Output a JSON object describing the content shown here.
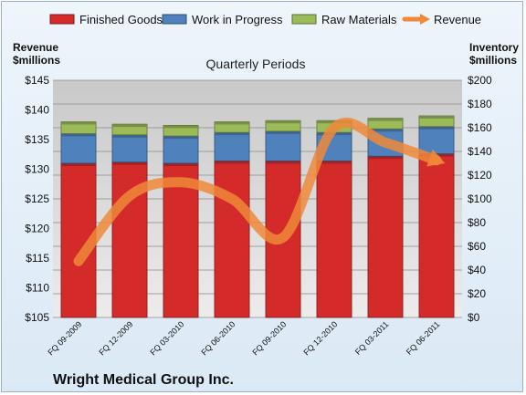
{
  "chart_data": {
    "type": "bar",
    "title": "Quarterly Periods",
    "company": "Wright Medical Group Inc.",
    "categories": [
      "FQ 09-2009",
      "FQ 12-2009",
      "FQ 03-2010",
      "FQ 06-2010",
      "FQ 09-2010",
      "FQ 12-2010",
      "FQ 03-2011",
      "FQ 06-2011"
    ],
    "left_axis": {
      "label_line1": "Revenue",
      "label_line2": "$millions",
      "ylim": [
        105,
        145
      ],
      "ticks": [
        "$105",
        "$110",
        "$115",
        "$120",
        "$125",
        "$130",
        "$135",
        "$140",
        "$145"
      ],
      "tick_values": [
        105,
        110,
        115,
        120,
        125,
        130,
        135,
        140,
        145
      ]
    },
    "right_axis": {
      "label_line1": "Inventory",
      "label_line2": "$millions",
      "ylim": [
        0,
        200
      ],
      "ticks": [
        "$0",
        "$20",
        "$40",
        "$60",
        "$80",
        "$100",
        "$120",
        "$140",
        "$160",
        "$180",
        "$200"
      ],
      "tick_values": [
        0,
        20,
        40,
        60,
        80,
        100,
        120,
        140,
        160,
        180,
        200
      ]
    },
    "stacked_series": [
      {
        "name": "Finished Goods",
        "color": "#d42a2a",
        "values": [
          130,
          131,
          130,
          132,
          132,
          132,
          136,
          138
        ]
      },
      {
        "name": "Work in Progress",
        "color": "#4f81bd",
        "values": [
          25,
          23,
          23,
          24,
          25,
          24,
          23,
          23
        ]
      },
      {
        "name": "Raw Materials",
        "color": "#9bbb59",
        "values": [
          10,
          9,
          9,
          9,
          9,
          10,
          9,
          9
        ]
      }
    ],
    "line_series": {
      "name": "Revenue",
      "color": "#f0883a",
      "values": [
        114.5,
        125.5,
        127.8,
        125.0,
        118.5,
        137.0,
        134.5,
        131.5
      ]
    },
    "legend_position": "top",
    "grid": true
  }
}
